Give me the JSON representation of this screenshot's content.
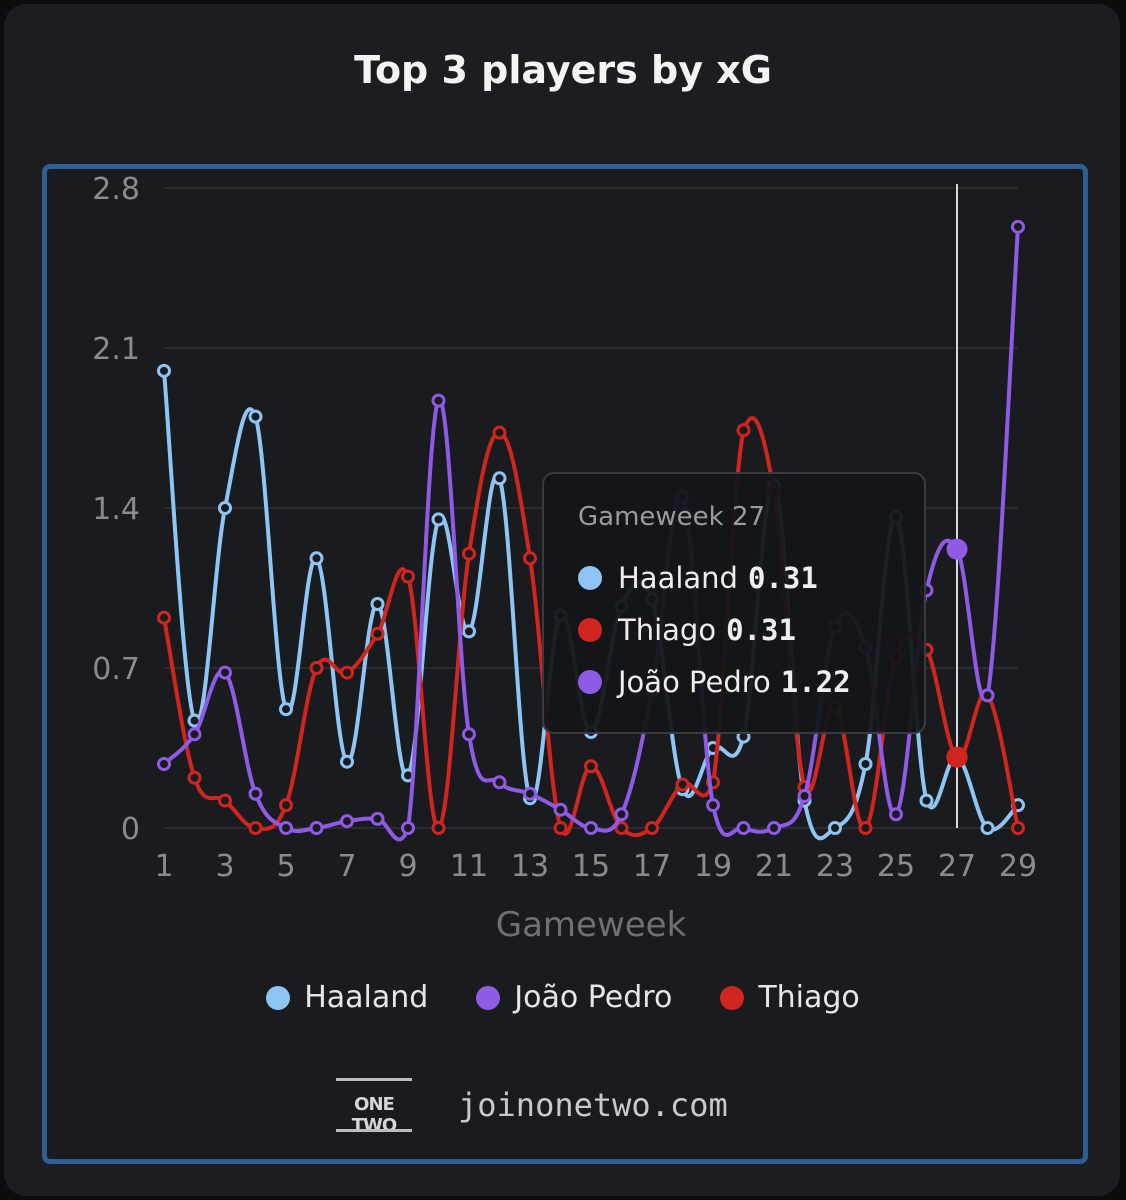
{
  "title": "Top 3 players by xG",
  "chart_data": {
    "type": "line",
    "xlabel": "Gameweek",
    "ylabel": "",
    "x": [
      1,
      2,
      3,
      4,
      5,
      6,
      7,
      8,
      9,
      10,
      11,
      12,
      13,
      14,
      15,
      16,
      17,
      18,
      19,
      20,
      21,
      22,
      23,
      24,
      25,
      26,
      27,
      28,
      29
    ],
    "xticks": [
      1,
      3,
      5,
      7,
      9,
      11,
      13,
      15,
      17,
      19,
      21,
      23,
      25,
      27,
      29
    ],
    "yticks": [
      0,
      0.7,
      1.4,
      2.1,
      2.8
    ],
    "ytick_labels": [
      "0",
      "0.7",
      "1.4",
      "2.1",
      "2.8"
    ],
    "ylim": [
      0,
      2.8
    ],
    "grid": true,
    "series": [
      {
        "name": "Haaland",
        "color": "#8ec5f5",
        "values": [
          2.0,
          0.47,
          1.4,
          1.8,
          0.52,
          1.18,
          0.29,
          0.98,
          0.23,
          1.35,
          0.86,
          1.53,
          0.13,
          0.93,
          0.42,
          0.97,
          1.0,
          0.17,
          0.35,
          0.4,
          1.5,
          0.12,
          0.0,
          0.28,
          1.36,
          0.12,
          0.31,
          0.0,
          0.1
        ]
      },
      {
        "name": "Thiago",
        "color": "#d0261f",
        "values": [
          0.92,
          0.22,
          0.12,
          0.0,
          0.1,
          0.7,
          0.68,
          0.85,
          1.1,
          0.0,
          1.2,
          1.73,
          1.18,
          0.0,
          0.27,
          0.0,
          0.0,
          0.19,
          0.2,
          1.74,
          1.47,
          0.18,
          0.53,
          0.0,
          0.75,
          0.78,
          0.31,
          0.58,
          0.0
        ]
      },
      {
        "name": "João Pedro",
        "color": "#8f5ae6",
        "values": [
          0.28,
          0.41,
          0.68,
          0.15,
          0.0,
          0.0,
          0.03,
          0.04,
          0.0,
          1.87,
          0.41,
          0.2,
          0.15,
          0.08,
          0.0,
          0.06,
          0.6,
          1.45,
          0.1,
          0.0,
          0.0,
          0.14,
          0.88,
          0.79,
          0.06,
          1.04,
          1.22,
          0.58,
          2.63
        ]
      }
    ],
    "legend_order": [
      "Haaland",
      "João Pedro",
      "Thiago"
    ],
    "legend_position": "bottom",
    "highlight_x": 27
  },
  "tooltip": {
    "title": "Gameweek 27",
    "rows": [
      {
        "name": "Haaland",
        "value": "0.31",
        "color": "#8ec5f5"
      },
      {
        "name": "Thiago",
        "value": "0.31",
        "color": "#d0261f"
      },
      {
        "name": "João Pedro",
        "value": "1.22",
        "color": "#8f5ae6"
      }
    ]
  },
  "legend": [
    {
      "name": "Haaland",
      "color": "#8ec5f5"
    },
    {
      "name": "João Pedro",
      "color": "#8f5ae6"
    },
    {
      "name": "Thiago",
      "color": "#d0261f"
    }
  ],
  "footer": {
    "logo_text": "ONE TWO",
    "site": "joinonetwo.com"
  }
}
